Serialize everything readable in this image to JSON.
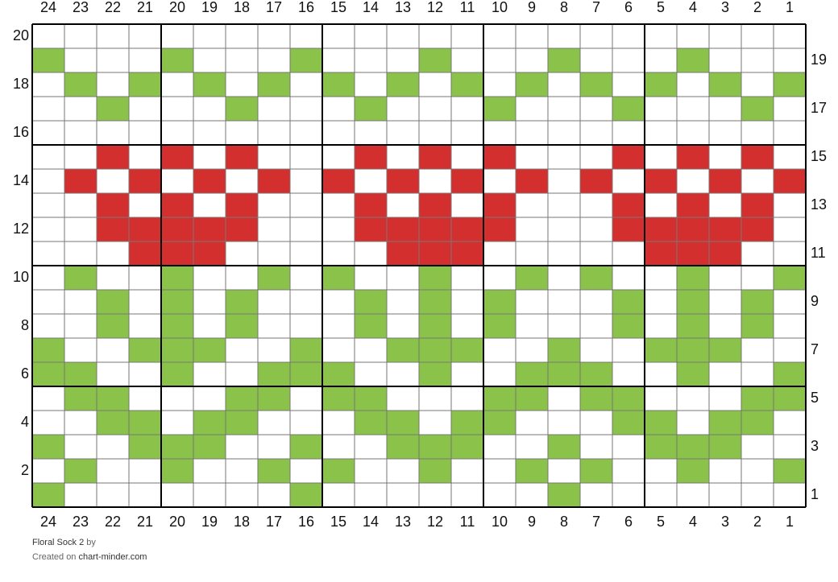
{
  "grid": {
    "columns": [
      "24",
      "23",
      "22",
      "21",
      "20",
      "19",
      "18",
      "17",
      "16",
      "15",
      "14",
      "13",
      "12",
      "11",
      "10",
      "9",
      "8",
      "7",
      "6",
      "5",
      "4",
      "3",
      "2",
      "1"
    ],
    "colors": {
      "g": "#8bc34a",
      "r": "#d32f2f",
      ".": "#ffffff"
    },
    "rows": [
      {
        "label": "20",
        "cells": "........................"
      },
      {
        "label": "19",
        "cells": "g...g...g...g...g...g..."
      },
      {
        "label": "18",
        "cells": ".g.g.g.g.g.g.g.g.g.g.g.g"
      },
      {
        "label": "17",
        "cells": "..g...g...g...g...g...g."
      },
      {
        "label": "16",
        "cells": "........................"
      },
      {
        "label": "15",
        "cells": "..r.r.r...r.r.r...r.r.r."
      },
      {
        "label": "14",
        "cells": ".r.r.r.r.r.r.r.r.r.r.r.r"
      },
      {
        "label": "13",
        "cells": "..r.r.r...r.r.r...r.r.r."
      },
      {
        "label": "12",
        "cells": "..rrrrr...rrrrr...rrrrr."
      },
      {
        "label": "11",
        "cells": "...rrr.....rrr.....rrr.."
      },
      {
        "label": "10",
        "cells": ".g..g..g.g..g..g.g..g..g"
      },
      {
        "label": "9",
        "cells": "..g.g.g...g.g.g...g.g.g."
      },
      {
        "label": "8",
        "cells": "..g.g.g...g.g.g...g.g.g."
      },
      {
        "label": "7",
        "cells": "g..ggg..g..ggg..g..ggg.."
      },
      {
        "label": "6",
        "cells": "gg..g..ggg..g..ggg..g..g"
      },
      {
        "label": "5",
        "cells": ".gg...gg.gg...gg.gg...gg"
      },
      {
        "label": "4",
        "cells": "..gg.gg...gg.gg...gg.gg."
      },
      {
        "label": "3",
        "cells": "g..ggg..g..ggg..g..ggg.."
      },
      {
        "label": "2",
        "cells": ".g..g..g.g..g..g.g..g..g"
      },
      {
        "label": "1",
        "cells": "g.......g.......g......."
      }
    ]
  },
  "footer": {
    "title": "Floral Sock 2",
    "by": "by",
    "created": "Created on",
    "site": "chart-minder.com"
  }
}
